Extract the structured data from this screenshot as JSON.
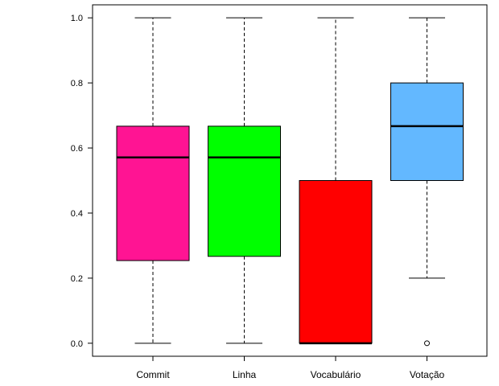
{
  "chart_data": {
    "type": "boxplot",
    "title": "",
    "xlabel": "",
    "ylabel": "",
    "ylim": [
      -0.04,
      1.04
    ],
    "y_ticks": [
      0.0,
      0.2,
      0.4,
      0.6,
      0.8,
      1.0
    ],
    "y_tick_labels": [
      "0.0",
      "0.2",
      "0.4",
      "0.6",
      "0.8",
      "1.0"
    ],
    "grid": false,
    "legend": "none",
    "categories": [
      "Commit",
      "Linha",
      "Vocabulário",
      "Votação"
    ],
    "boxes": [
      {
        "category": "Commit",
        "whisker_low": 0.0,
        "q1": 0.254,
        "median": 0.571,
        "q3": 0.667,
        "whisker_high": 1.0,
        "outliers": [],
        "color": "#FF1493"
      },
      {
        "category": "Linha",
        "whisker_low": 0.0,
        "q1": 0.267,
        "median": 0.571,
        "q3": 0.667,
        "whisker_high": 1.0,
        "outliers": [],
        "color": "#00FF00"
      },
      {
        "category": "Vocabulário",
        "whisker_low": 0.0,
        "q1": 0.0,
        "median": 0.0,
        "q3": 0.5,
        "whisker_high": 1.0,
        "outliers": [],
        "color": "#FF0000"
      },
      {
        "category": "Votação",
        "whisker_low": 0.2,
        "q1": 0.5,
        "median": 0.667,
        "q3": 0.8,
        "whisker_high": 1.0,
        "outliers": [
          0.0
        ],
        "color": "#63B8FF"
      }
    ]
  }
}
